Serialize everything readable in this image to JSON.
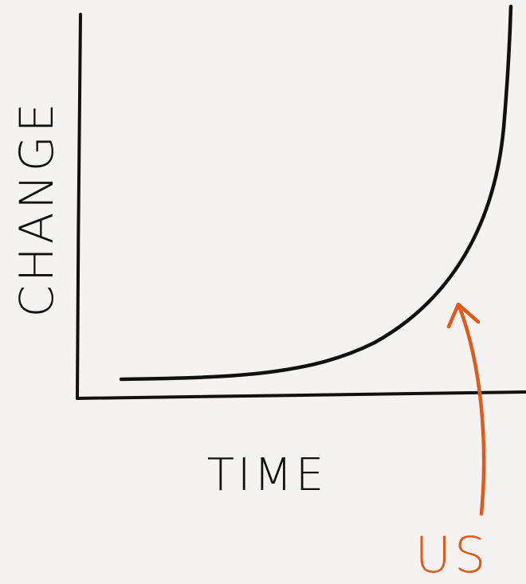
{
  "y_label": "CHANGE",
  "x_label": "TIME",
  "annotation": "US"
}
